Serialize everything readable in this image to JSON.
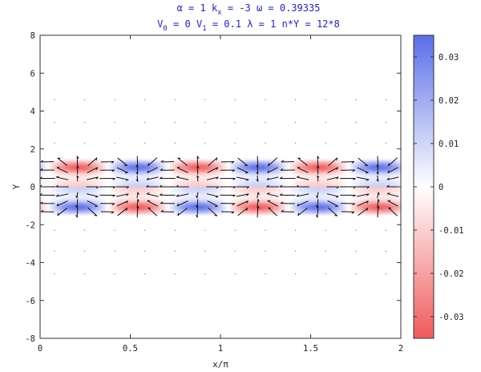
{
  "chart_data": {
    "type": "heatmap",
    "title_line1": [
      {
        "sym": "α",
        "rest": " = 1"
      },
      {
        "sym": "k",
        "sub": "x",
        "rest": " = -3"
      },
      {
        "sym": "ω",
        "rest": " = 0.39335"
      }
    ],
    "title_line2": [
      {
        "sym": "V",
        "sub": "0",
        "rest": " = 0"
      },
      {
        "sym": "V",
        "sub": "1",
        "rest": " = 0.1"
      },
      {
        "sym": "λ",
        "rest": " = 1"
      },
      {
        "sym": "n*Y",
        "rest": " = 12*8"
      }
    ],
    "xlabel": "x/π",
    "ylabel": "Y",
    "xlim": [
      0,
      2
    ],
    "ylim": [
      -8,
      8
    ],
    "x_ticks": [
      "0",
      "0.5",
      "1",
      "1.5",
      "2"
    ],
    "y_ticks": [
      "-8",
      "-6",
      "-4",
      "-2",
      "0",
      "2",
      "4",
      "6",
      "8"
    ],
    "colorbar": {
      "range": [
        -0.035,
        0.035
      ],
      "ticks": [
        0.03,
        0.02,
        0.01,
        0,
        -0.01,
        -0.02,
        -0.03
      ],
      "tick_labels": [
        "0.03",
        "0.02",
        "0.01",
        "0",
        "-0.01",
        "-0.02",
        "-0.03"
      ],
      "colors": {
        "positive": "#5a6ee8",
        "zero": "#ffffff",
        "negative": "#f05a5a"
      }
    },
    "field": {
      "band_halfwidth_Y": 1.4,
      "period_x_over_pi": 0.667,
      "peak_amplitude": 0.03
    },
    "arrow_color": "#111111"
  }
}
